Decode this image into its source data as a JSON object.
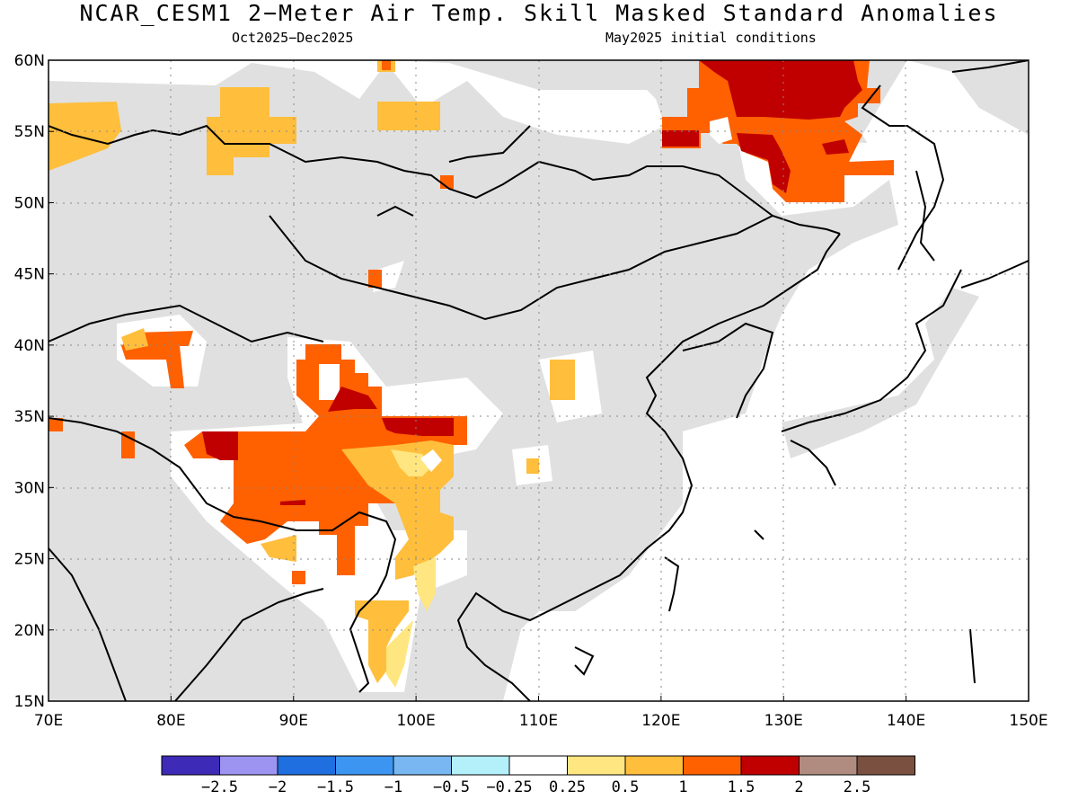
{
  "title": "NCAR_CESM1 2−Meter Air Temp. Skill Masked Standard Anomalies",
  "subtitle_left": "Oct2025−Dec2025",
  "subtitle_right": "May2025 initial conditions",
  "map": {
    "lon_range": [
      70,
      150
    ],
    "lat_range": [
      15,
      60
    ],
    "lon_ticks": [
      "70E",
      "80E",
      "90E",
      "100E",
      "110E",
      "120E",
      "130E",
      "140E",
      "150E"
    ],
    "lat_ticks": [
      "15N",
      "20N",
      "25N",
      "30N",
      "35N",
      "40N",
      "45N",
      "50N",
      "55N",
      "60N"
    ],
    "mask_color": "#e0e0e0",
    "ocean_color": "#ffffff"
  },
  "colorbar": {
    "colors": [
      "#3d2ab6",
      "#9d94f2",
      "#1f6fe0",
      "#3d95f2",
      "#78b7f2",
      "#b4f0fa",
      "#ffffff",
      "#ffe680",
      "#ffbe3c",
      "#ff6000",
      "#c00000",
      "#b08c80",
      "#7a5040"
    ],
    "labels": [
      "−2.5",
      "−2",
      "−1.5",
      "−1",
      "−0.5",
      "−0.25",
      "0.25",
      "0.5",
      "1",
      "1.5",
      "2",
      "2.5"
    ]
  }
}
